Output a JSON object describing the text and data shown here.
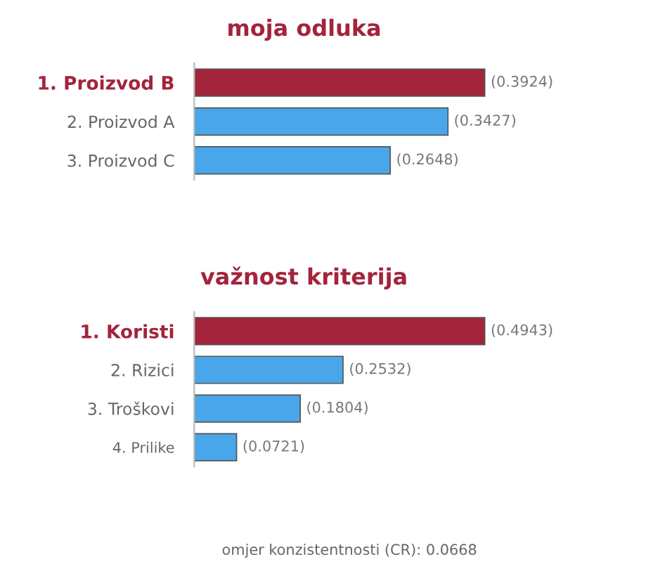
{
  "chart_data": [
    {
      "type": "bar",
      "orientation": "horizontal",
      "title": "moja odluka",
      "categories": [
        "1. Proizvod B",
        "2. Proizvod A",
        "3. Proizvod C"
      ],
      "values": [
        0.3924,
        0.3427,
        0.2648
      ],
      "colors": [
        "#a3243b",
        "#4aa6ea",
        "#4aa6ea"
      ],
      "value_labels": [
        "(0.3924)",
        "(0.3427)",
        "(0.2648)"
      ],
      "tick_labels": "y",
      "grid": false,
      "legend": false
    },
    {
      "type": "bar",
      "orientation": "horizontal",
      "title": "važnost kriterija",
      "categories": [
        "1. Koristi",
        "2. Rizici",
        "3. Troškovi",
        "4. Prilike"
      ],
      "values": [
        0.4943,
        0.2532,
        0.1804,
        0.0721
      ],
      "colors": [
        "#a3243b",
        "#4aa6ea",
        "#4aa6ea",
        "#4aa6ea"
      ],
      "value_labels": [
        "(0.4943)",
        "(0.2532)",
        "(0.1804)",
        "(0.0721)"
      ],
      "tick_labels": "y",
      "grid": false,
      "legend": false,
      "annotations": [
        "omjer konzistentnosti (CR): 0.0668"
      ]
    }
  ]
}
